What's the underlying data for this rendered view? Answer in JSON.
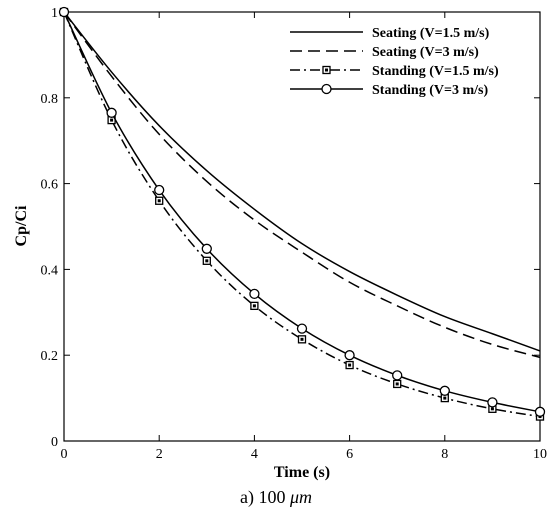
{
  "chart_data": {
    "type": "line",
    "xlabel": "Time (s)",
    "ylabel": "Cp/Ci",
    "caption": "a) 100",
    "caption_unit": "μm",
    "xlim": [
      0,
      10
    ],
    "ylim": [
      0,
      1
    ],
    "xticks": [
      "0",
      "2",
      "4",
      "6",
      "8",
      "10"
    ],
    "yticks": [
      "0",
      "0.2",
      "0.4",
      "0.6",
      "0.8",
      "1"
    ],
    "grid": false,
    "legend_position": "top-right",
    "series": [
      {
        "name": "Seating (V=1.5 m/s)",
        "style": "solid",
        "marker": "none",
        "x": [
          0,
          1,
          2,
          3,
          4,
          5,
          6,
          7,
          8,
          9,
          10
        ],
        "y": [
          1.0,
          0.86,
          0.735,
          0.63,
          0.54,
          0.46,
          0.395,
          0.34,
          0.29,
          0.25,
          0.21
        ]
      },
      {
        "name": "Seating (V=3 m/s)",
        "style": "dashed",
        "marker": "none",
        "x": [
          0,
          1,
          2,
          3,
          4,
          5,
          6,
          7,
          8,
          9,
          10
        ],
        "y": [
          1.0,
          0.85,
          0.715,
          0.605,
          0.515,
          0.44,
          0.37,
          0.315,
          0.265,
          0.225,
          0.195
        ]
      },
      {
        "name": "Standing (V=1.5 m/s)",
        "style": "dashdot",
        "marker": "square",
        "x": [
          0,
          1,
          2,
          3,
          4,
          5,
          6,
          7,
          8,
          9,
          10
        ],
        "y": [
          1.0,
          0.748,
          0.56,
          0.42,
          0.315,
          0.237,
          0.177,
          0.133,
          0.1,
          0.075,
          0.057
        ]
      },
      {
        "name": "Standing (V=3 m/s)",
        "style": "solid",
        "marker": "circle",
        "x": [
          0,
          1,
          2,
          3,
          4,
          5,
          6,
          7,
          8,
          9,
          10
        ],
        "y": [
          1.0,
          0.765,
          0.585,
          0.448,
          0.343,
          0.262,
          0.2,
          0.153,
          0.117,
          0.09,
          0.068
        ]
      }
    ]
  }
}
